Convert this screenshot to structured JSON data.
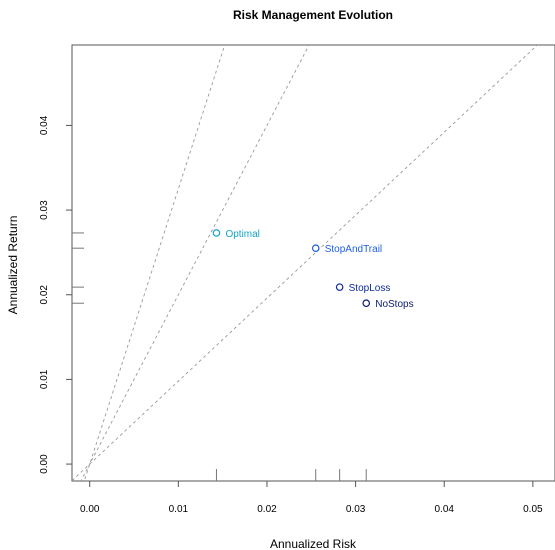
{
  "chart_data": {
    "type": "scatter",
    "title": "Risk Management Evolution",
    "xlabel": "Annualized Risk",
    "ylabel": "Annualized Return",
    "xlim": [
      -0.002,
      0.0525
    ],
    "ylim": [
      -0.002,
      0.0495
    ],
    "xticks": [
      0.0,
      0.01,
      0.02,
      0.03,
      0.04,
      0.05
    ],
    "xtick_labels": [
      "0.00",
      "0.01",
      "0.02",
      "0.03",
      "0.04",
      "0.05"
    ],
    "yticks": [
      0.0,
      0.01,
      0.02,
      0.03,
      0.04
    ],
    "ytick_labels": [
      "0.00",
      "0.01",
      "0.02",
      "0.03",
      "0.04"
    ],
    "grid": false,
    "points": [
      {
        "label": "NoStops",
        "x": 0.0312,
        "y": 0.019,
        "color": "#0a1a6e"
      },
      {
        "label": "StopLoss",
        "x": 0.0282,
        "y": 0.0209,
        "color": "#0c2a9a"
      },
      {
        "label": "StopAndTrail",
        "x": 0.0255,
        "y": 0.0255,
        "color": "#1f5fe0"
      },
      {
        "label": "Optimal",
        "x": 0.0143,
        "y": 0.0273,
        "color": "#19a3c9"
      }
    ],
    "reference_lines": [
      {
        "slope": 0.98
      },
      {
        "slope": 2.0
      },
      {
        "slope": 3.25
      }
    ],
    "rugs": {
      "x": [
        0.0143,
        0.0255,
        0.0282,
        0.0312
      ],
      "y": [
        0.019,
        0.0209,
        0.0255,
        0.0273
      ]
    }
  }
}
